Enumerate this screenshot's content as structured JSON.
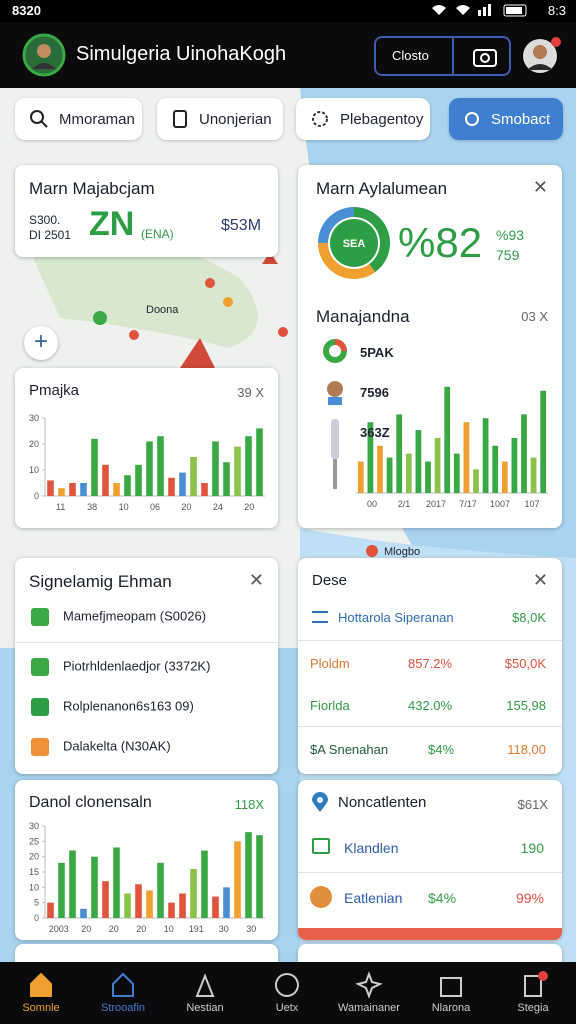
{
  "status_bar": {
    "left": "8320",
    "clock": "8:3"
  },
  "app_bar": {
    "title": "Simulgeria UinohaKogh",
    "button": "Closto"
  },
  "chips": [
    "Mmoraman",
    "Unonjerian",
    "Plebagentoy",
    "Smobact"
  ],
  "map_labels": [
    "Doona",
    "Mlogbo"
  ],
  "summary_card": {
    "title": "Marn Majabcjam",
    "sub1": "S300.",
    "sub2": "DI 2501",
    "big": "ZN",
    "big_note": "(ENA)",
    "amount": "$53M"
  },
  "gauge_card": {
    "title": "Marn Aylalumean",
    "donut_label": "SEA",
    "donut": {
      "values": [
        40,
        35,
        25
      ],
      "colors": [
        "#2e9e44",
        "#f0a030",
        "#4a8fd4"
      ]
    },
    "big": "%82",
    "note1": "%93",
    "note2": "759"
  },
  "list_card": {
    "title": "Manajandna",
    "badge": "03 X",
    "items": [
      "5PAK",
      "7596",
      "363Z"
    ],
    "chart": {
      "values": [
        8,
        18,
        12,
        9,
        20,
        10,
        16,
        8,
        14,
        27,
        10,
        18,
        6,
        19,
        12,
        8,
        14,
        20,
        9,
        26
      ],
      "colors": [
        "#f0a030",
        "#3aa845",
        "#f0a030",
        "#3aa845",
        "#3aa845",
        "#8bc34a",
        "#3aa845",
        "#3aa845",
        "#8bc34a",
        "#3aa845",
        "#3aa845",
        "#f0a030",
        "#8bc34a",
        "#3aa845",
        "#3aa845",
        "#f0a030",
        "#3aa845",
        "#3aa845",
        "#8bc34a",
        "#3aa845"
      ],
      "ylim": [
        0,
        30
      ],
      "xlabels": [
        "00",
        "2/1",
        "2017",
        "7/17",
        "1007",
        "107"
      ]
    }
  },
  "pmajka_card": {
    "title": "Pmajka",
    "badge": "39 X",
    "chart": {
      "values": [
        6,
        3,
        5,
        5,
        22,
        12,
        5,
        8,
        12,
        21,
        23,
        7,
        9,
        15,
        5,
        21,
        13,
        19,
        23,
        26
      ],
      "colors": [
        "#e0533d",
        "#f0a030",
        "#e0533d",
        "#4a8fd4",
        "#3aa845",
        "#e0533d",
        "#f0a030",
        "#3aa845",
        "#3aa845",
        "#3aa845",
        "#3aa845",
        "#e0533d",
        "#4a8fd4",
        "#8bc34a",
        "#e0533d",
        "#3aa845",
        "#3aa845",
        "#8bc34a",
        "#3aa845",
        "#3aa845"
      ],
      "ylim": [
        0,
        30
      ],
      "yticks": [
        0,
        10,
        20,
        30
      ],
      "xlabels": [
        "11",
        "38",
        "10",
        "06",
        "20",
        "24",
        "20"
      ]
    }
  },
  "signals_card": {
    "title": "Signelamig Ehman",
    "items": [
      "Mamefjmeopam (S0026)",
      "Piotrhldenlaedjor (3372K)",
      "Rolplenanon6s163 09)",
      "Dalakelta (N30AK)"
    ]
  },
  "dese_card": {
    "title": "Dese",
    "rows": [
      [
        "Hottarola Siperanan",
        "$8,0K"
      ],
      [
        "Ploldm",
        "857.2%",
        "$50,0K"
      ],
      [
        "Fiorlda",
        "432.0%",
        "155,98"
      ],
      [
        "$A Snenahan",
        "$4%",
        "118,00"
      ]
    ]
  },
  "danol_card": {
    "title": "Danol clonensaln",
    "badge": "118X",
    "chart": {
      "values": [
        5,
        18,
        22,
        3,
        20,
        12,
        23,
        8,
        11,
        9,
        18,
        5,
        8,
        16,
        22,
        7,
        10,
        25,
        28,
        27
      ],
      "colors": [
        "#e0533d",
        "#3aa845",
        "#3aa845",
        "#4a8fd4",
        "#3aa845",
        "#e0533d",
        "#3aa845",
        "#8bc34a",
        "#e0533d",
        "#f0a030",
        "#3aa845",
        "#e0533d",
        "#e0533d",
        "#8bc34a",
        "#3aa845",
        "#e0533d",
        "#4a8fd4",
        "#f0a030",
        "#3aa845",
        "#3aa845"
      ],
      "ylim": [
        0,
        30
      ],
      "yticks": [
        0,
        5,
        10,
        15,
        20,
        25,
        30
      ],
      "xlabels": [
        "2003",
        "20",
        "20",
        "20",
        "10",
        "191",
        "30",
        "30"
      ]
    }
  },
  "noncat_card": {
    "title": "Noncatlenten",
    "badge": "$61X",
    "rows": [
      [
        "Klandlen",
        "190"
      ],
      [
        "Eatlenian",
        "$4%",
        "99%"
      ]
    ]
  },
  "nav": [
    "Somnle",
    "Strooafin",
    "Nestian",
    "Uetx",
    "Wamainaner",
    "Nlarona",
    "Stegia"
  ]
}
